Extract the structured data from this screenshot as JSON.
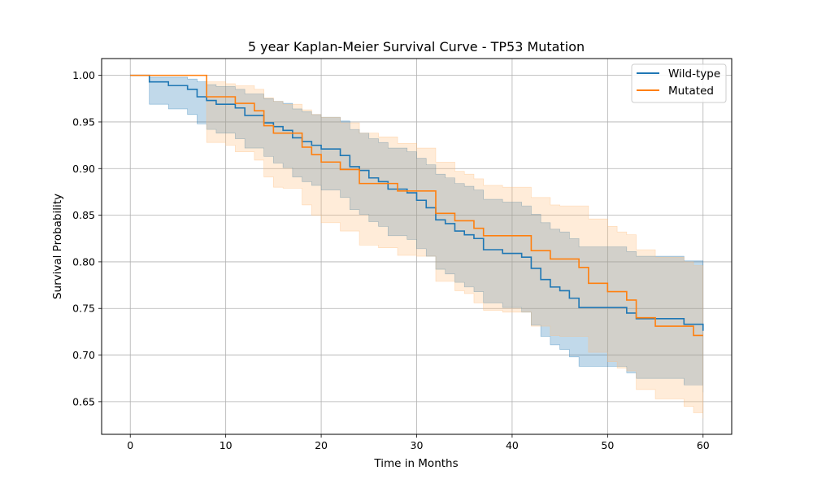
{
  "chart_data": {
    "type": "line",
    "title": "5 year Kaplan-Meier Survival Curve - TP53 Mutation",
    "xlabel": "Time in Months",
    "ylabel": "Survival Probability",
    "xlim": [
      -3,
      63
    ],
    "ylim": [
      0.615,
      1.018
    ],
    "xticks": [
      0,
      10,
      20,
      30,
      40,
      50,
      60
    ],
    "yticks": [
      0.65,
      0.7,
      0.75,
      0.8,
      0.85,
      0.9,
      0.95,
      1.0
    ],
    "ytick_labels": [
      "0.65",
      "0.70",
      "0.75",
      "0.80",
      "0.85",
      "0.90",
      "0.95",
      "1.00"
    ],
    "grid": true,
    "legend_position": "top-right",
    "series": [
      {
        "name": "Wild-type",
        "color": "#1f77b4",
        "band_color": "#1f77b4",
        "step": {
          "t": [
            0,
            2,
            4,
            6,
            7,
            8,
            9,
            11,
            12,
            14,
            15,
            16,
            17,
            18,
            19,
            20,
            22,
            23,
            24,
            25,
            26,
            27,
            29,
            30,
            31,
            32,
            33,
            34,
            35,
            36,
            37,
            39,
            41,
            42,
            43,
            44,
            45,
            46,
            47,
            52,
            53,
            58,
            60
          ],
          "s": [
            1.0,
            0.993,
            0.989,
            0.985,
            0.977,
            0.973,
            0.969,
            0.965,
            0.957,
            0.949,
            0.945,
            0.941,
            0.933,
            0.929,
            0.925,
            0.921,
            0.914,
            0.902,
            0.898,
            0.89,
            0.886,
            0.878,
            0.874,
            0.866,
            0.858,
            0.845,
            0.841,
            0.833,
            0.829,
            0.825,
            0.813,
            0.809,
            0.805,
            0.793,
            0.781,
            0.773,
            0.769,
            0.761,
            0.751,
            0.745,
            0.739,
            0.733,
            0.726
          ]
        },
        "ci": {
          "t": [
            0,
            2,
            4,
            6,
            7,
            8,
            9,
            11,
            12,
            14,
            15,
            16,
            17,
            18,
            19,
            20,
            22,
            23,
            24,
            25,
            26,
            27,
            29,
            30,
            31,
            32,
            33,
            34,
            35,
            36,
            37,
            39,
            41,
            42,
            43,
            44,
            45,
            46,
            47,
            50,
            52,
            53,
            58,
            60
          ],
          "lower": [
            1.0,
            0.969,
            0.964,
            0.958,
            0.948,
            0.942,
            0.938,
            0.932,
            0.922,
            0.913,
            0.906,
            0.901,
            0.891,
            0.886,
            0.882,
            0.877,
            0.869,
            0.856,
            0.851,
            0.843,
            0.838,
            0.828,
            0.824,
            0.814,
            0.806,
            0.792,
            0.787,
            0.778,
            0.773,
            0.768,
            0.756,
            0.751,
            0.746,
            0.732,
            0.72,
            0.711,
            0.706,
            0.698,
            0.688,
            0.688,
            0.681,
            0.675,
            0.668,
            0.66
          ],
          "upper": [
            1.0,
            0.998,
            0.998,
            0.996,
            0.993,
            0.99,
            0.988,
            0.985,
            0.98,
            0.975,
            0.972,
            0.97,
            0.964,
            0.961,
            0.958,
            0.955,
            0.951,
            0.942,
            0.938,
            0.932,
            0.928,
            0.922,
            0.918,
            0.911,
            0.904,
            0.894,
            0.89,
            0.884,
            0.881,
            0.877,
            0.867,
            0.864,
            0.86,
            0.851,
            0.842,
            0.835,
            0.832,
            0.825,
            0.816,
            0.816,
            0.811,
            0.806,
            0.801,
            0.795
          ]
        }
      },
      {
        "name": "Mutated",
        "color": "#ff7f0e",
        "band_color": "#ffbb78",
        "step": {
          "t": [
            0,
            8,
            11,
            13,
            14,
            15,
            16,
            18,
            19,
            20,
            22,
            24,
            28,
            32,
            34,
            36,
            37,
            42,
            44,
            47,
            48,
            50,
            52,
            53,
            55,
            59,
            60
          ],
          "s": [
            1.0,
            0.977,
            0.97,
            0.962,
            0.946,
            0.938,
            0.938,
            0.923,
            0.915,
            0.907,
            0.899,
            0.884,
            0.876,
            0.852,
            0.844,
            0.836,
            0.828,
            0.812,
            0.803,
            0.794,
            0.777,
            0.768,
            0.759,
            0.74,
            0.731,
            0.721,
            0.721
          ]
        },
        "ci": {
          "t": [
            0,
            8,
            10,
            11,
            13,
            14,
            15,
            16,
            18,
            19,
            20,
            22,
            24,
            26,
            28,
            30,
            32,
            34,
            35,
            36,
            37,
            39,
            42,
            44,
            45,
            48,
            50,
            51,
            52,
            53,
            55,
            58,
            59,
            60
          ],
          "lower": [
            1.0,
            0.928,
            0.925,
            0.918,
            0.909,
            0.891,
            0.88,
            0.879,
            0.861,
            0.85,
            0.842,
            0.833,
            0.818,
            0.815,
            0.807,
            0.806,
            0.779,
            0.769,
            0.766,
            0.756,
            0.748,
            0.746,
            0.731,
            0.721,
            0.72,
            0.703,
            0.693,
            0.686,
            0.683,
            0.663,
            0.653,
            0.645,
            0.638,
            0.632
          ],
          "upper": [
            1.0,
            0.993,
            0.991,
            0.989,
            0.985,
            0.976,
            0.972,
            0.969,
            0.963,
            0.958,
            0.955,
            0.949,
            0.938,
            0.934,
            0.927,
            0.922,
            0.907,
            0.897,
            0.894,
            0.889,
            0.882,
            0.88,
            0.869,
            0.861,
            0.86,
            0.846,
            0.838,
            0.832,
            0.829,
            0.813,
            0.805,
            0.8,
            0.796,
            0.793
          ]
        }
      }
    ]
  }
}
